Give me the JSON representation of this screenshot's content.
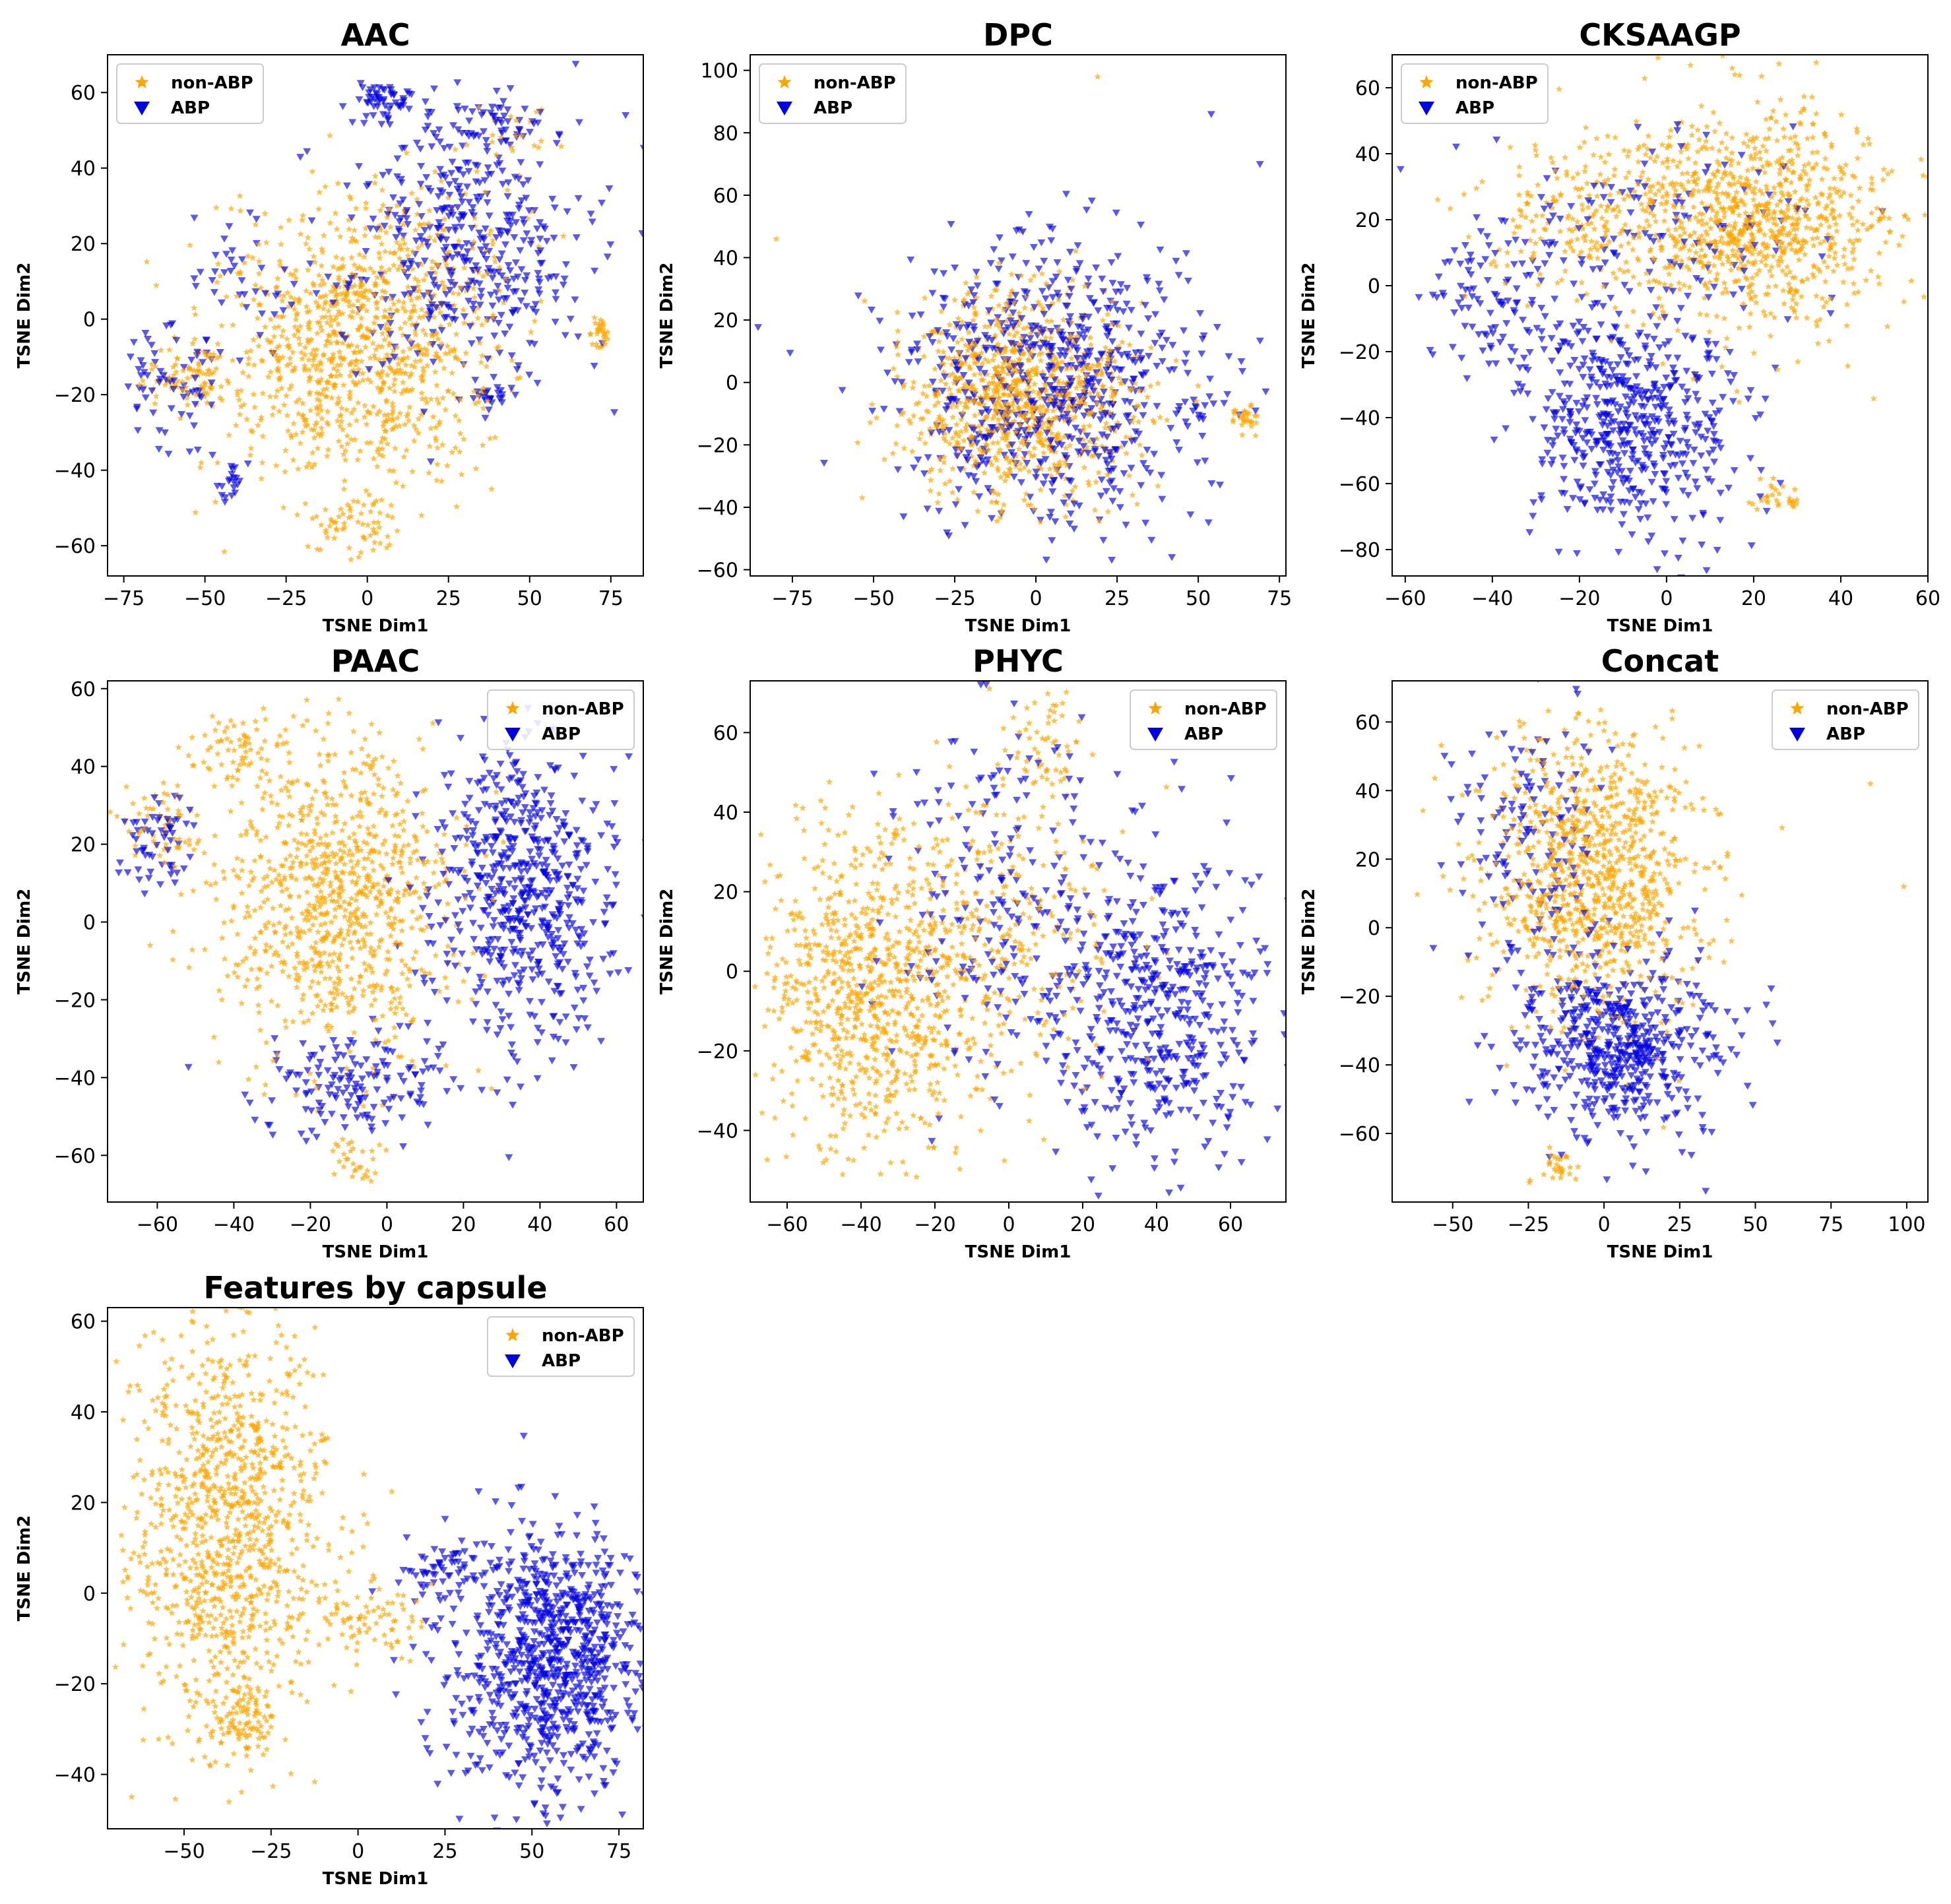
{
  "figure": {
    "legend_labels": [
      "non-ABP",
      "ABP"
    ],
    "colors": {
      "non_abp": "#FFA500",
      "abp": "#0000E0"
    }
  },
  "chart_data": [
    {
      "type": "scatter",
      "title": "AAC",
      "xlabel": "TSNE Dim1",
      "ylabel": "TSNE Dim2",
      "xlim": [
        -80,
        85
      ],
      "ylim": [
        -68,
        70
      ],
      "xticks": [
        -75,
        -50,
        -25,
        0,
        25,
        50,
        75
      ],
      "yticks": [
        -60,
        -40,
        -20,
        0,
        20,
        40,
        60
      ],
      "legend": "top-left",
      "series": [
        {
          "name": "non-ABP",
          "marker": "star",
          "clusters": [
            {
              "cx": -5,
              "cy": -10,
              "sx": 20,
              "sy": 18,
              "n": 900
            },
            {
              "cx": -55,
              "cy": -15,
              "sx": 7,
              "sy": 5,
              "n": 80
            },
            {
              "cx": -2,
              "cy": -55,
              "sx": 8,
              "sy": 4,
              "n": 60
            },
            {
              "cx": 72,
              "cy": -4,
              "sx": 2,
              "sy": 2,
              "n": 30
            },
            {
              "cx": 15,
              "cy": 15,
              "sx": 20,
              "sy": 15,
              "n": 150
            },
            {
              "cx": 45,
              "cy": 50,
              "sx": 6,
              "sy": 4,
              "n": 20
            }
          ]
        },
        {
          "name": "ABP",
          "marker": "triangle-down",
          "clusters": [
            {
              "cx": 30,
              "cy": 20,
              "sx": 18,
              "sy": 18,
              "n": 450
            },
            {
              "cx": 5,
              "cy": 58,
              "sx": 5,
              "sy": 3,
              "n": 50
            },
            {
              "cx": 40,
              "cy": 52,
              "sx": 8,
              "sy": 4,
              "n": 40
            },
            {
              "cx": -60,
              "cy": -15,
              "sx": 8,
              "sy": 8,
              "n": 70
            },
            {
              "cx": -43,
              "cy": -43,
              "sx": 2,
              "sy": 2,
              "n": 20
            },
            {
              "cx": 38,
              "cy": -20,
              "sx": 3,
              "sy": 3,
              "n": 20
            },
            {
              "cx": -35,
              "cy": 10,
              "sx": 10,
              "sy": 8,
              "n": 40
            }
          ]
        }
      ]
    },
    {
      "type": "scatter",
      "title": "DPC",
      "xlabel": "TSNE Dim1",
      "ylabel": "TSNE Dim2",
      "xlim": [
        -88,
        77
      ],
      "ylim": [
        -62,
        105
      ],
      "xticks": [
        -75,
        -50,
        -25,
        0,
        25,
        50,
        75
      ],
      "yticks": [
        -60,
        -40,
        -20,
        0,
        20,
        40,
        60,
        80,
        100
      ],
      "legend": "top-left",
      "series": [
        {
          "name": "non-ABP",
          "marker": "star",
          "clusters": [
            {
              "cx": -5,
              "cy": -5,
              "sx": 17,
              "sy": 16,
              "n": 950
            },
            {
              "cx": 65,
              "cy": -11,
              "sx": 2,
              "sy": 2,
              "n": 30
            },
            {
              "cx": -80,
              "cy": 46,
              "sx": 0.5,
              "sy": 0.5,
              "n": 1
            },
            {
              "cx": 19,
              "cy": 98,
              "sx": 0.5,
              "sy": 0.5,
              "n": 1
            }
          ]
        },
        {
          "name": "ABP",
          "marker": "triangle-down",
          "clusters": [
            {
              "cx": 5,
              "cy": 0,
              "sx": 26,
              "sy": 22,
              "n": 700
            },
            {
              "cx": 54,
              "cy": 86,
              "sx": 0.5,
              "sy": 0.5,
              "n": 1
            },
            {
              "cx": 69,
              "cy": 70,
              "sx": 0.5,
              "sy": 0.5,
              "n": 1
            }
          ]
        }
      ]
    },
    {
      "type": "scatter",
      "title": "CKSAAGP",
      "xlabel": "TSNE Dim1",
      "ylabel": "TSNE Dim2",
      "xlim": [
        -63,
        60
      ],
      "ylim": [
        -88,
        70
      ],
      "xticks": [
        -60,
        -40,
        -20,
        0,
        20,
        40,
        60
      ],
      "yticks": [
        -80,
        -60,
        -40,
        -20,
        0,
        20,
        40,
        60
      ],
      "legend": "top-left",
      "series": [
        {
          "name": "non-ABP",
          "marker": "star",
          "clusters": [
            {
              "cx": 18,
              "cy": 20,
              "sx": 17,
              "sy": 16,
              "n": 1000
            },
            {
              "cx": -25,
              "cy": 20,
              "sx": 10,
              "sy": 12,
              "n": 150
            },
            {
              "cx": 25,
              "cy": -65,
              "sx": 3,
              "sy": 2,
              "n": 30
            }
          ]
        },
        {
          "name": "ABP",
          "marker": "triangle-down",
          "clusters": [
            {
              "cx": -8,
              "cy": -40,
              "sx": 12,
              "sy": 18,
              "n": 550
            },
            {
              "cx": -40,
              "cy": -5,
              "sx": 9,
              "sy": 12,
              "n": 100
            },
            {
              "cx": 0,
              "cy": 20,
              "sx": 20,
              "sy": 15,
              "n": 120
            }
          ]
        }
      ]
    },
    {
      "type": "scatter",
      "title": "PAAC",
      "xlabel": "TSNE Dim1",
      "ylabel": "TSNE Dim2",
      "xlim": [
        -73,
        67
      ],
      "ylim": [
        -72,
        62
      ],
      "xticks": [
        -60,
        -40,
        -20,
        0,
        20,
        40,
        60
      ],
      "yticks": [
        -60,
        -40,
        -20,
        0,
        20,
        40,
        60
      ],
      "legend": "top-right",
      "series": [
        {
          "name": "non-ABP",
          "marker": "star",
          "clusters": [
            {
              "cx": -12,
              "cy": 5,
              "sx": 16,
              "sy": 20,
              "n": 900
            },
            {
              "cx": -40,
              "cy": 45,
              "sx": 5,
              "sy": 5,
              "n": 60
            },
            {
              "cx": -60,
              "cy": 25,
              "sx": 6,
              "sy": 6,
              "n": 60
            },
            {
              "cx": -8,
              "cy": -62,
              "sx": 4,
              "sy": 3,
              "n": 30
            }
          ]
        },
        {
          "name": "ABP",
          "marker": "triangle-down",
          "clusters": [
            {
              "cx": 35,
              "cy": 5,
              "sx": 13,
              "sy": 20,
              "n": 600
            },
            {
              "cx": -10,
              "cy": -42,
              "sx": 12,
              "sy": 7,
              "n": 150
            },
            {
              "cx": -60,
              "cy": 22,
              "sx": 6,
              "sy": 6,
              "n": 60
            }
          ]
        }
      ]
    },
    {
      "type": "scatter",
      "title": "PHYC",
      "xlabel": "TSNE Dim1",
      "ylabel": "TSNE Dim2",
      "xlim": [
        -70,
        75
      ],
      "ylim": [
        -58,
        73
      ],
      "xticks": [
        -60,
        -40,
        -20,
        0,
        20,
        40,
        60
      ],
      "yticks": [
        -40,
        -20,
        0,
        20,
        40,
        60
      ],
      "legend": "top-right",
      "series": [
        {
          "name": "non-ABP",
          "marker": "star",
          "clusters": [
            {
              "cx": -35,
              "cy": -5,
              "sx": 15,
              "sy": 20,
              "n": 900
            },
            {
              "cx": 10,
              "cy": 55,
              "sx": 5,
              "sy": 7,
              "n": 60
            },
            {
              "cx": 5,
              "cy": 10,
              "sx": 15,
              "sy": 20,
              "n": 200
            }
          ]
        },
        {
          "name": "ABP",
          "marker": "triangle-down",
          "clusters": [
            {
              "cx": 40,
              "cy": -10,
              "sx": 14,
              "sy": 20,
              "n": 500
            },
            {
              "cx": 0,
              "cy": 20,
              "sx": 15,
              "sy": 25,
              "n": 200
            }
          ]
        }
      ]
    },
    {
      "type": "scatter",
      "title": "Concat",
      "xlabel": "TSNE Dim1",
      "ylabel": "TSNE Dim2",
      "xlim": [
        -70,
        107
      ],
      "ylim": [
        -80,
        72
      ],
      "xticks": [
        -50,
        -25,
        0,
        25,
        50,
        75,
        100
      ],
      "yticks": [
        -60,
        -40,
        -20,
        0,
        20,
        40,
        60
      ],
      "legend": "top-right",
      "series": [
        {
          "name": "non-ABP",
          "marker": "star",
          "clusters": [
            {
              "cx": -3,
              "cy": 15,
              "sx": 18,
              "sy": 20,
              "n": 1000
            },
            {
              "cx": -15,
              "cy": -70,
              "sx": 4,
              "sy": 2,
              "n": 30
            },
            {
              "cx": 88,
              "cy": 42,
              "sx": 0.5,
              "sy": 0.5,
              "n": 1
            },
            {
              "cx": 99,
              "cy": 12,
              "sx": 0.5,
              "sy": 0.5,
              "n": 1
            }
          ]
        },
        {
          "name": "ABP",
          "marker": "triangle-down",
          "clusters": [
            {
              "cx": 5,
              "cy": -35,
              "sx": 18,
              "sy": 13,
              "n": 550
            },
            {
              "cx": -25,
              "cy": 25,
              "sx": 12,
              "sy": 20,
              "n": 150
            }
          ]
        }
      ]
    },
    {
      "type": "scatter",
      "title": "Features by capsule",
      "xlabel": "TSNE Dim1",
      "ylabel": "TSNE Dim2",
      "xlim": [
        -72,
        82
      ],
      "ylim": [
        -52,
        63
      ],
      "xticks": [
        -50,
        -25,
        0,
        25,
        50,
        75
      ],
      "yticks": [
        -40,
        -20,
        0,
        20,
        40,
        60
      ],
      "legend": "top-right",
      "series": [
        {
          "name": "non-ABP",
          "marker": "star",
          "clusters": [
            {
              "cx": -38,
              "cy": 15,
              "sx": 14,
              "sy": 22,
              "n": 1000
            },
            {
              "cx": 5,
              "cy": -5,
              "sx": 10,
              "sy": 4,
              "n": 80
            },
            {
              "cx": -33,
              "cy": -28,
              "sx": 5,
              "sy": 5,
              "n": 100
            }
          ]
        },
        {
          "name": "ABP",
          "marker": "triangle-down",
          "clusters": [
            {
              "cx": 55,
              "cy": -15,
              "sx": 14,
              "sy": 14,
              "n": 900
            },
            {
              "cx": 25,
              "cy": 5,
              "sx": 8,
              "sy": 3,
              "n": 60
            }
          ]
        }
      ]
    }
  ]
}
